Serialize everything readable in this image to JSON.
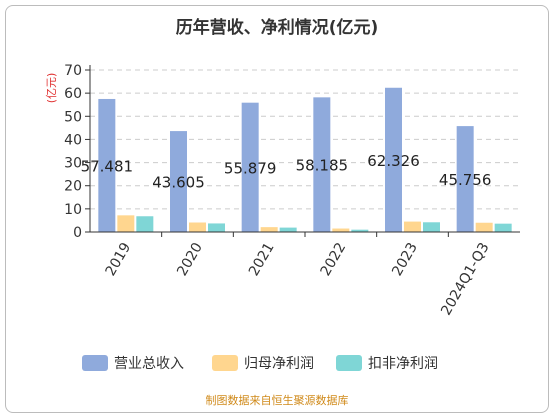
{
  "chart_data": {
    "type": "bar",
    "title": "历年营收、净利情况(亿元)",
    "ylabel": "(亿元)",
    "ylim": [
      0,
      70
    ],
    "yticks": [
      0,
      10,
      20,
      30,
      40,
      50,
      60,
      70
    ],
    "grid": true,
    "legend_position": "bottom",
    "categories": [
      "2019",
      "2020",
      "2021",
      "2022",
      "2023",
      "2024Q1-Q3"
    ],
    "series": [
      {
        "name": "营业总收入",
        "color": "#8faadc",
        "values": [
          57.481,
          43.605,
          55.879,
          58.185,
          62.326,
          45.756
        ],
        "show_labels": true
      },
      {
        "name": "归母净利润",
        "color": "#ffd68f",
        "values": [
          7.2,
          4.1,
          2.1,
          1.5,
          4.5,
          4.0
        ],
        "show_labels": false
      },
      {
        "name": "扣非净利润",
        "color": "#7fd6d6",
        "values": [
          6.8,
          3.7,
          1.9,
          1.0,
          4.2,
          3.6
        ],
        "show_labels": false
      }
    ],
    "source": "制图数据来自恒生聚源数据库"
  },
  "colors": {
    "axis": "#333333",
    "grid": "#cccccc",
    "ylabel": "#e03030",
    "source": "#d08a1a"
  }
}
